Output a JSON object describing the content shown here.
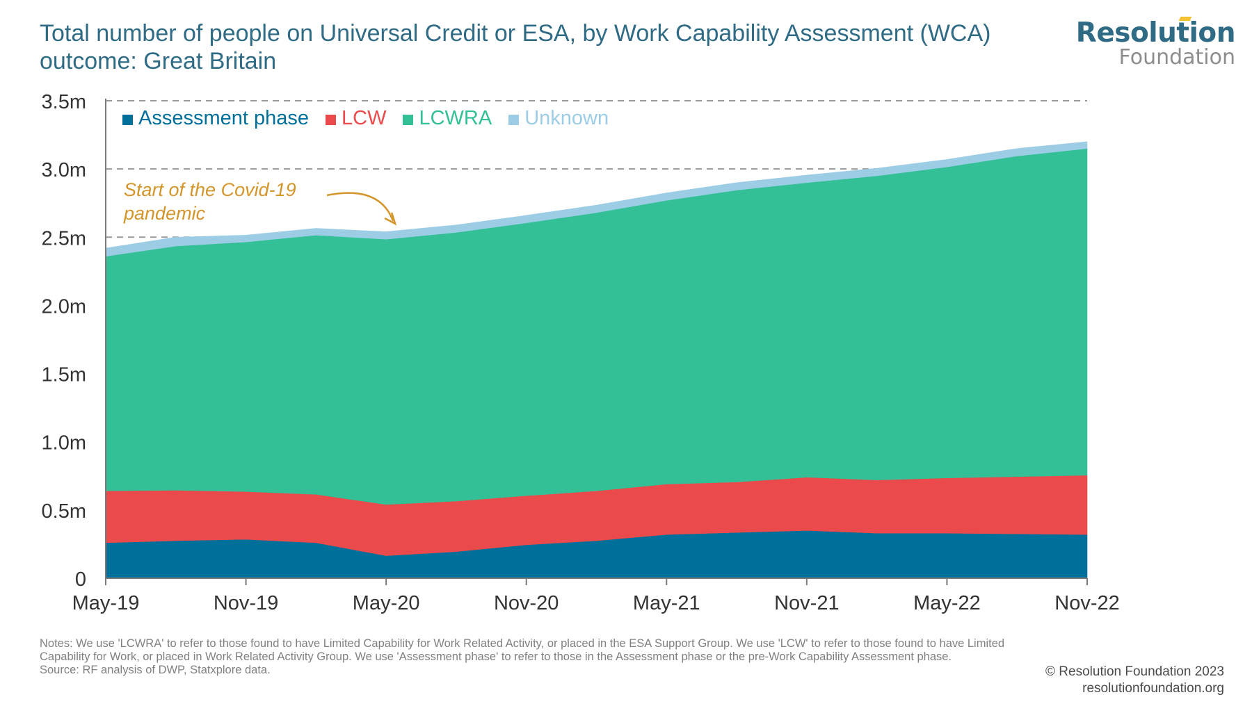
{
  "header": {
    "title": "Total number of people on Universal Credit or ESA, by Work Capability Assessment (WCA) outcome: Great Britain"
  },
  "logo": {
    "line1": "Resolution",
    "line2": "Foundation"
  },
  "chart_data": {
    "type": "area",
    "stacked": true,
    "categories": [
      "May-19",
      "Aug-19",
      "Nov-19",
      "Feb-20",
      "May-20",
      "Aug-20",
      "Nov-20",
      "Feb-21",
      "May-21",
      "Aug-21",
      "Nov-21",
      "Feb-22",
      "May-22",
      "Aug-22",
      "Nov-22"
    ],
    "x_tick_labels": [
      "May-19",
      "Nov-19",
      "May-20",
      "Nov-20",
      "May-21",
      "Nov-21",
      "May-22",
      "Nov-22"
    ],
    "y_tick_labels": [
      "0",
      "0.5m",
      "1.0m",
      "1.5m",
      "2.0m",
      "2.5m",
      "3.0m",
      "3.5m"
    ],
    "ylim": [
      0,
      3.5
    ],
    "unit": "m",
    "grid": "dashed lines at 2.5m, 3.0m and 3.5m",
    "legend_position": "top-left",
    "series": [
      {
        "name": "Assessment phase",
        "color": "#006f9a",
        "values": [
          0.26,
          0.275,
          0.285,
          0.26,
          0.165,
          0.195,
          0.245,
          0.275,
          0.32,
          0.335,
          0.35,
          0.33,
          0.33,
          0.325,
          0.32
        ]
      },
      {
        "name": "LCW",
        "color": "#ea4a4b",
        "values": [
          0.38,
          0.37,
          0.35,
          0.355,
          0.375,
          0.37,
          0.36,
          0.365,
          0.37,
          0.37,
          0.39,
          0.39,
          0.405,
          0.42,
          0.435
        ]
      },
      {
        "name": "LCWRA",
        "color": "#33c096",
        "values": [
          1.72,
          1.79,
          1.83,
          1.9,
          1.945,
          1.97,
          2.0,
          2.04,
          2.08,
          2.14,
          2.16,
          2.23,
          2.28,
          2.35,
          2.395
        ]
      },
      {
        "name": "Unknown",
        "color": "#9dcde5",
        "values": [
          0.06,
          0.065,
          0.05,
          0.05,
          0.055,
          0.055,
          0.055,
          0.055,
          0.055,
          0.055,
          0.055,
          0.055,
          0.055,
          0.055,
          0.05
        ]
      }
    ],
    "annotation": {
      "text": "Start of the Covid-19 pandemic",
      "color": "#d4952b",
      "points_to": "May-20"
    }
  },
  "notes": "Notes: We use 'LCWRA' to refer to those found to have Limited Capability for Work Related Activity, or placed in the ESA Support Group. We use 'LCW' to refer to those found to have Limited Capability for Work, or placed in Work Related Activity Group. We use 'Assessment phase' to refer to those in the Assessment phase or the pre-Work Capability Assessment phase.",
  "source": "Source: RF analysis of DWP, Statxplore data.",
  "copyright": "© Resolution Foundation 2023",
  "website": "resolutionfoundation.org"
}
